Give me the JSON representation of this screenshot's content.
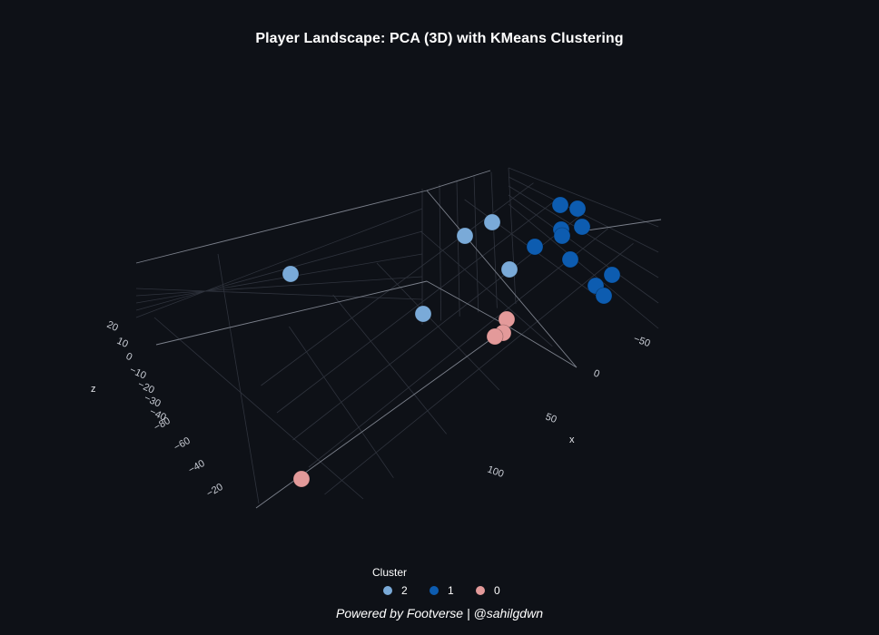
{
  "title": "Player Landscape: PCA (3D) with KMeans Clustering",
  "footer": "Powered by Footverse | @sahilgdwn",
  "legend": {
    "title": "Cluster",
    "items": [
      {
        "label": "2",
        "color": "#7aaad8"
      },
      {
        "label": "1",
        "color": "#0d5cb0"
      },
      {
        "label": "0",
        "color": "#e39a9a"
      }
    ]
  },
  "chart_data": {
    "type": "scatter",
    "title": "Player Landscape: PCA (3D) with KMeans Clustering",
    "projection": "3d",
    "x_axis": {
      "label": "x",
      "ticks": [
        "−50",
        "0",
        "50",
        "100"
      ]
    },
    "y_axis": {
      "label": "",
      "ticks": [
        "−80",
        "−60",
        "−40",
        "−20"
      ]
    },
    "z_axis": {
      "label": "z",
      "ticks": [
        "20",
        "10",
        "0",
        "−10",
        "−20",
        "−30",
        "−40"
      ]
    },
    "legend_title": "Cluster",
    "series": [
      {
        "name": "2",
        "color": "#7aaad8",
        "count": 5
      },
      {
        "name": "1",
        "color": "#0d5cb0",
        "count": 11
      },
      {
        "name": "0",
        "color": "#e39a9a",
        "count": 4
      }
    ]
  }
}
